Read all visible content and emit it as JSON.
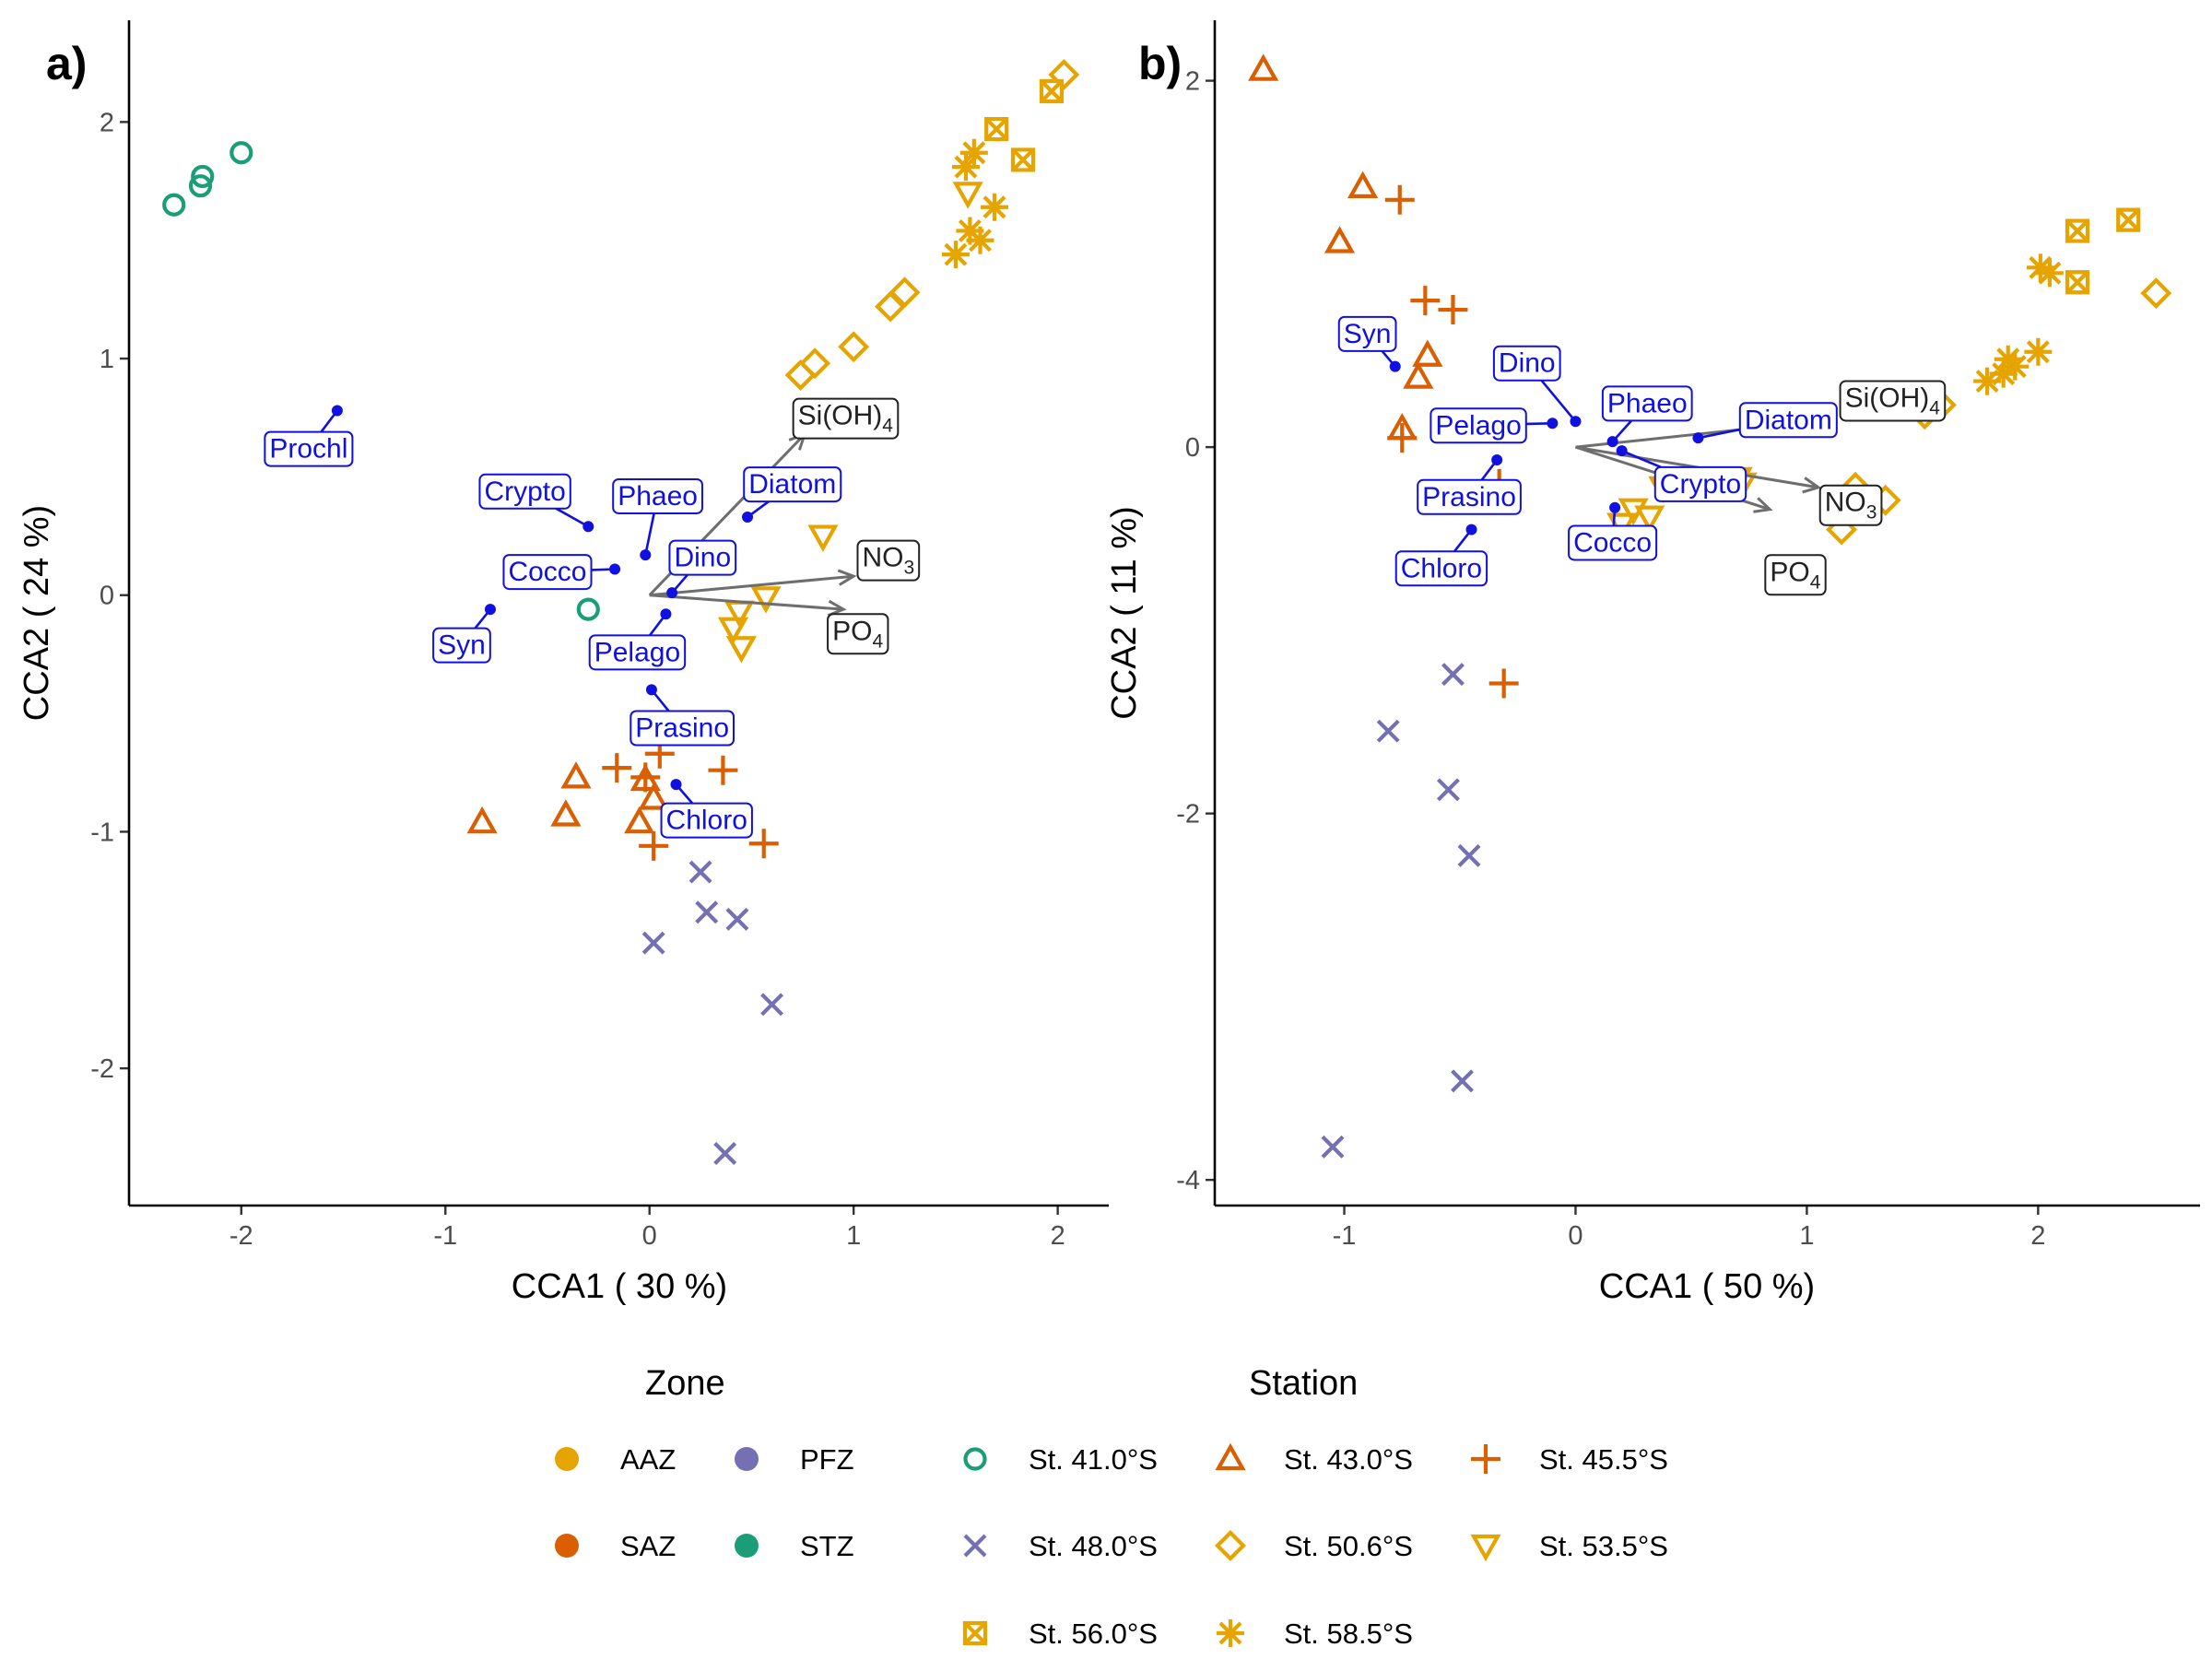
{
  "chart_data": [
    {
      "type": "scatter",
      "panel_label": "a)",
      "xlabel": "CCA1 ( 30 %)",
      "ylabel": "CCA2 ( 24 %)",
      "xlim": [
        -2.55,
        2.25
      ],
      "ylim": [
        -2.58,
        2.43
      ],
      "x_ticks": [
        -2,
        -1,
        0,
        1,
        2
      ],
      "y_ticks": [
        -2,
        -1,
        0,
        1,
        2
      ],
      "grid": false,
      "points": [
        {
          "station": "St. 41.0°S",
          "x": -2.33,
          "y": 1.65
        },
        {
          "station": "St. 41.0°S",
          "x": -2.2,
          "y": 1.73
        },
        {
          "station": "St. 41.0°S",
          "x": -2.19,
          "y": 1.77
        },
        {
          "station": "St. 41.0°S",
          "x": -2.0,
          "y": 1.87
        },
        {
          "station": "St. 41.0°S",
          "x": -0.3,
          "y": -0.06
        },
        {
          "station": "St. 43.0°S",
          "x": -0.82,
          "y": -0.96
        },
        {
          "station": "St. 43.0°S",
          "x": -0.41,
          "y": -0.93
        },
        {
          "station": "St. 43.0°S",
          "x": -0.36,
          "y": -0.77
        },
        {
          "station": "St. 43.0°S",
          "x": -0.05,
          "y": -0.96
        },
        {
          "station": "St. 43.0°S",
          "x": -0.02,
          "y": -0.78
        },
        {
          "station": "St. 43.0°S",
          "x": 0.02,
          "y": -0.86
        },
        {
          "station": "St. 45.5°S",
          "x": -0.16,
          "y": -0.73
        },
        {
          "station": "St. 45.5°S",
          "x": -0.02,
          "y": -0.77
        },
        {
          "station": "St. 45.5°S",
          "x": 0.05,
          "y": -0.67
        },
        {
          "station": "St. 45.5°S",
          "x": 0.36,
          "y": -0.74
        },
        {
          "station": "St. 45.5°S",
          "x": 0.02,
          "y": -1.06
        },
        {
          "station": "St. 45.5°S",
          "x": 0.56,
          "y": -1.05
        },
        {
          "station": "St. 48.0°S",
          "x": 0.02,
          "y": -1.47
        },
        {
          "station": "St. 48.0°S",
          "x": 0.25,
          "y": -1.17
        },
        {
          "station": "St. 48.0°S",
          "x": 0.28,
          "y": -1.34
        },
        {
          "station": "St. 48.0°S",
          "x": 0.43,
          "y": -1.37
        },
        {
          "station": "St. 48.0°S",
          "x": 0.6,
          "y": -1.73
        },
        {
          "station": "St. 48.0°S",
          "x": 0.37,
          "y": -2.36
        },
        {
          "station": "St. 50.6°S",
          "x": 0.74,
          "y": 0.93
        },
        {
          "station": "St. 50.6°S",
          "x": 0.81,
          "y": 0.98
        },
        {
          "station": "St. 50.6°S",
          "x": 1.0,
          "y": 1.05
        },
        {
          "station": "St. 50.6°S",
          "x": 1.18,
          "y": 1.22
        },
        {
          "station": "St. 50.6°S",
          "x": 1.25,
          "y": 1.28
        },
        {
          "station": "St. 50.6°S",
          "x": 2.03,
          "y": 2.2
        },
        {
          "station": "St. 53.5°S",
          "x": 0.85,
          "y": 0.25
        },
        {
          "station": "St. 53.5°S",
          "x": 0.44,
          "y": -0.07
        },
        {
          "station": "St. 53.5°S",
          "x": 0.57,
          "y": -0.01
        },
        {
          "station": "St. 53.5°S",
          "x": 0.41,
          "y": -0.14
        },
        {
          "station": "St. 53.5°S",
          "x": 0.45,
          "y": -0.22
        },
        {
          "station": "St. 53.5°S",
          "x": 1.56,
          "y": 1.7
        },
        {
          "station": "St. 56.0°S",
          "x": 1.7,
          "y": 1.97
        },
        {
          "station": "St. 56.0°S",
          "x": 1.83,
          "y": 1.84
        },
        {
          "station": "St. 56.0°S",
          "x": 1.97,
          "y": 2.13
        },
        {
          "station": "St. 58.5°S",
          "x": 1.55,
          "y": 1.81
        },
        {
          "station": "St. 58.5°S",
          "x": 1.59,
          "y": 1.87
        },
        {
          "station": "St. 58.5°S",
          "x": 1.69,
          "y": 1.64
        },
        {
          "station": "St. 58.5°S",
          "x": 1.57,
          "y": 1.54
        },
        {
          "station": "St. 58.5°S",
          "x": 1.62,
          "y": 1.5
        },
        {
          "station": "St. 58.5°S",
          "x": 1.5,
          "y": 1.44
        }
      ],
      "species": [
        {
          "name": "Prochl",
          "x": -1.53,
          "y": 0.78,
          "lx": -1.67,
          "ly": 0.62
        },
        {
          "name": "Crypto",
          "x": -0.3,
          "y": 0.29,
          "lx": -0.61,
          "ly": 0.44
        },
        {
          "name": "Phaeo",
          "x": -0.02,
          "y": 0.17,
          "lx": 0.04,
          "ly": 0.42
        },
        {
          "name": "Diatom",
          "x": 0.48,
          "y": 0.33,
          "lx": 0.7,
          "ly": 0.47
        },
        {
          "name": "Cocco",
          "x": -0.17,
          "y": 0.11,
          "lx": -0.5,
          "ly": 0.1
        },
        {
          "name": "Dino",
          "x": 0.11,
          "y": 0.01,
          "lx": 0.26,
          "ly": 0.16
        },
        {
          "name": "Syn",
          "x": -0.78,
          "y": -0.06,
          "lx": -0.92,
          "ly": -0.21
        },
        {
          "name": "Pelago",
          "x": 0.08,
          "y": -0.08,
          "lx": -0.06,
          "ly": -0.24
        },
        {
          "name": "Prasino",
          "x": 0.01,
          "y": -0.4,
          "lx": 0.16,
          "ly": -0.56
        },
        {
          "name": "Chloro",
          "x": 0.13,
          "y": -0.8,
          "lx": 0.28,
          "ly": -0.95
        }
      ],
      "vectors": [
        {
          "name": "Si(OH)4",
          "base": "Si(OH)",
          "sub": "4",
          "x": 0.76,
          "y": 0.68,
          "lx": 0.96,
          "ly": 0.76
        },
        {
          "name": "NO3",
          "base": "NO",
          "sub": "3",
          "x": 1.0,
          "y": 0.08,
          "lx": 1.17,
          "ly": 0.16
        },
        {
          "name": "PO4",
          "base": "PO",
          "sub": "4",
          "x": 0.95,
          "y": -0.06,
          "lx": 1.02,
          "ly": -0.15
        }
      ]
    },
    {
      "type": "scatter",
      "panel_label": "b)",
      "xlabel": "CCA1 ( 50 %)",
      "ylabel": "CCA2 ( 11 %)",
      "xlim": [
        -1.56,
        2.7
      ],
      "ylim": [
        -4.14,
        2.33
      ],
      "x_ticks": [
        -1,
        0,
        1,
        2
      ],
      "y_ticks": [
        -4,
        -2,
        0,
        2
      ],
      "grid": false,
      "points": [
        {
          "station": "St. 43.0°S",
          "x": -1.35,
          "y": 2.06
        },
        {
          "station": "St. 43.0°S",
          "x": -0.92,
          "y": 1.42
        },
        {
          "station": "St. 43.0°S",
          "x": -1.02,
          "y": 1.12
        },
        {
          "station": "St. 43.0°S",
          "x": -0.64,
          "y": 0.5
        },
        {
          "station": "St. 43.0°S",
          "x": -0.68,
          "y": 0.38
        },
        {
          "station": "St. 43.0°S",
          "x": -0.75,
          "y": 0.1
        },
        {
          "station": "St. 45.5°S",
          "x": -0.76,
          "y": 1.35
        },
        {
          "station": "St. 45.5°S",
          "x": -0.65,
          "y": 0.8
        },
        {
          "station": "St. 45.5°S",
          "x": -0.53,
          "y": 0.75
        },
        {
          "station": "St. 45.5°S",
          "x": -0.75,
          "y": 0.05
        },
        {
          "station": "St. 45.5°S",
          "x": -0.33,
          "y": -0.2
        },
        {
          "station": "St. 45.5°S",
          "x": -0.31,
          "y": -1.29
        },
        {
          "station": "St. 48.0°S",
          "x": -0.53,
          "y": -1.24
        },
        {
          "station": "St. 48.0°S",
          "x": -0.81,
          "y": -1.55
        },
        {
          "station": "St. 48.0°S",
          "x": -0.55,
          "y": -1.87
        },
        {
          "station": "St. 48.0°S",
          "x": -0.46,
          "y": -2.23
        },
        {
          "station": "St. 48.0°S",
          "x": -0.49,
          "y": -3.46
        },
        {
          "station": "St. 48.0°S",
          "x": -1.05,
          "y": -3.82
        },
        {
          "station": "St. 50.6°S",
          "x": 1.15,
          "y": -0.45
        },
        {
          "station": "St. 50.6°S",
          "x": 1.21,
          "y": -0.22
        },
        {
          "station": "St. 50.6°S",
          "x": 1.34,
          "y": -0.29
        },
        {
          "station": "St. 50.6°S",
          "x": 1.51,
          "y": 0.18
        },
        {
          "station": "St. 50.6°S",
          "x": 1.58,
          "y": 0.23
        },
        {
          "station": "St. 50.6°S",
          "x": 2.51,
          "y": 0.84
        },
        {
          "station": "St. 53.5°S",
          "x": 0.2,
          "y": -0.42
        },
        {
          "station": "St. 53.5°S",
          "x": 0.25,
          "y": -0.34
        },
        {
          "station": "St. 53.5°S",
          "x": 0.32,
          "y": -0.38
        },
        {
          "station": "St. 53.5°S",
          "x": 0.38,
          "y": -0.22
        },
        {
          "station": "St. 53.5°S",
          "x": 0.7,
          "y": -0.17
        },
        {
          "station": "St. 53.5°S",
          "x": 0.72,
          "y": -0.2
        },
        {
          "station": "St. 56.0°S",
          "x": 2.17,
          "y": 1.18
        },
        {
          "station": "St. 56.0°S",
          "x": 2.39,
          "y": 1.24
        },
        {
          "station": "St. 56.0°S",
          "x": 2.17,
          "y": 0.9
        },
        {
          "station": "St. 58.5°S",
          "x": 1.78,
          "y": 0.36
        },
        {
          "station": "St. 58.5°S",
          "x": 1.85,
          "y": 0.4
        },
        {
          "station": "St. 58.5°S",
          "x": 1.87,
          "y": 0.48
        },
        {
          "station": "St. 58.5°S",
          "x": 1.9,
          "y": 0.44
        },
        {
          "station": "St. 58.5°S",
          "x": 2.0,
          "y": 0.52
        },
        {
          "station": "St. 58.5°S",
          "x": 2.01,
          "y": 0.98
        },
        {
          "station": "St. 58.5°S",
          "x": 2.05,
          "y": 0.95
        }
      ],
      "species": [
        {
          "name": "Syn",
          "x": -0.78,
          "y": 0.44,
          "lx": -0.9,
          "ly": 0.62
        },
        {
          "name": "Dino",
          "x": 0.0,
          "y": 0.14,
          "lx": -0.21,
          "ly": 0.46
        },
        {
          "name": "Pelago",
          "x": -0.1,
          "y": 0.13,
          "lx": -0.42,
          "ly": 0.12
        },
        {
          "name": "Phaeo",
          "x": 0.16,
          "y": 0.03,
          "lx": 0.31,
          "ly": 0.24
        },
        {
          "name": "Diatom",
          "x": 0.53,
          "y": 0.05,
          "lx": 0.92,
          "ly": 0.15
        },
        {
          "name": "Prasino",
          "x": -0.34,
          "y": -0.07,
          "lx": -0.46,
          "ly": -0.27
        },
        {
          "name": "Crypto",
          "x": 0.2,
          "y": -0.02,
          "lx": 0.54,
          "ly": -0.2
        },
        {
          "name": "Cocco",
          "x": 0.17,
          "y": -0.33,
          "lx": 0.16,
          "ly": -0.52
        },
        {
          "name": "Chloro",
          "x": -0.45,
          "y": -0.45,
          "lx": -0.58,
          "ly": -0.66
        }
      ],
      "vectors": [
        {
          "name": "Si(OH)4",
          "base": "Si(OH)",
          "sub": "4",
          "x": 0.97,
          "y": 0.13,
          "lx": 1.37,
          "ly": 0.27
        },
        {
          "name": "NO3",
          "base": "NO",
          "sub": "3",
          "x": 1.05,
          "y": -0.22,
          "lx": 1.19,
          "ly": -0.3
        },
        {
          "name": "PO4",
          "base": "PO",
          "sub": "4",
          "x": 0.84,
          "y": -0.34,
          "lx": 0.95,
          "ly": -0.68
        }
      ]
    }
  ],
  "legend": {
    "zone_title": "Zone",
    "station_title": "Station",
    "zones": [
      {
        "label": "AAZ",
        "color": "#E6A400"
      },
      {
        "label": "PFZ",
        "color": "#7570B3"
      },
      {
        "label": "SAZ",
        "color": "#D95F02"
      },
      {
        "label": "STZ",
        "color": "#1B9E77"
      }
    ],
    "stations": [
      {
        "label": "St. 41.0°S",
        "shape": "circle-open",
        "color": "#1B9E77"
      },
      {
        "label": "St. 43.0°S",
        "shape": "triangle-open",
        "color": "#D95F02"
      },
      {
        "label": "St. 45.5°S",
        "shape": "plus",
        "color": "#D95F02"
      },
      {
        "label": "St. 48.0°S",
        "shape": "cross",
        "color": "#7570B3"
      },
      {
        "label": "St. 50.6°S",
        "shape": "diamond-open",
        "color": "#E6A400"
      },
      {
        "label": "St. 53.5°S",
        "shape": "triangle-down-open",
        "color": "#E6A400"
      },
      {
        "label": "St. 56.0°S",
        "shape": "square-cross",
        "color": "#E6A400"
      },
      {
        "label": "St. 58.5°S",
        "shape": "asterisk",
        "color": "#E6A400"
      }
    ]
  },
  "colors": {
    "species": "#1010E0",
    "vector": "#6E6E6E",
    "vector_label": "#222222"
  }
}
